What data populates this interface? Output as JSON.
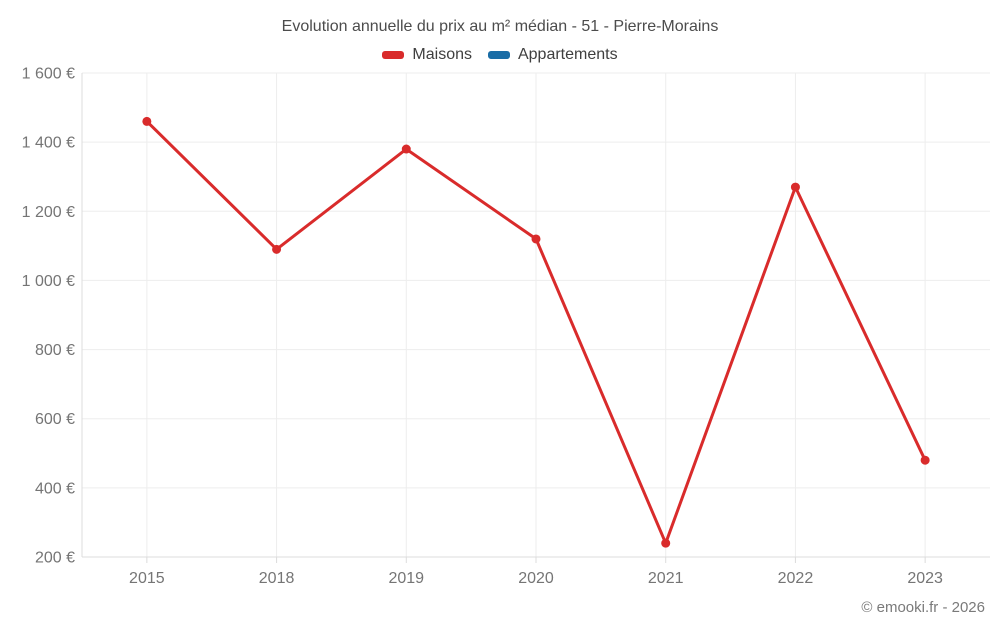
{
  "chart_data": {
    "type": "line",
    "title": "Evolution annuelle du prix au m² médian - 51 - Pierre-Morains",
    "categories": [
      "2015",
      "2018",
      "2019",
      "2020",
      "2021",
      "2022",
      "2023"
    ],
    "series": [
      {
        "name": "Maisons",
        "color": "#d92b2b",
        "values": [
          1460,
          1090,
          1380,
          1120,
          240,
          1270,
          480
        ]
      },
      {
        "name": "Appartements",
        "color": "#1a6da6",
        "values": []
      }
    ],
    "xlabel": "",
    "ylabel": "",
    "ylim": [
      200,
      1600
    ],
    "yticks": [
      200,
      400,
      600,
      800,
      1000,
      1200,
      1400,
      1600
    ],
    "ytick_labels": [
      "200 €",
      "400 €",
      "600 €",
      "800 €",
      "1 000 €",
      "1 200 €",
      "1 400 €",
      "1 600 €"
    ],
    "grid": true,
    "legend_position": "top"
  },
  "footer": {
    "copyright": "© emooki.fr - 2026"
  }
}
